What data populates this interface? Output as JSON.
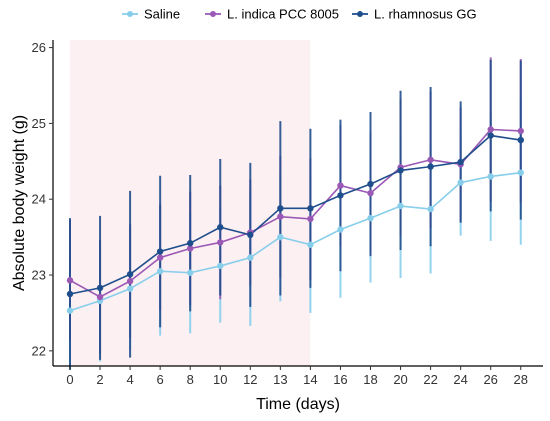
{
  "chart_data": {
    "type": "line",
    "title": "",
    "xlabel": "Time (days)",
    "ylabel": "Absolute body weight (g)",
    "x": [
      0,
      2,
      4,
      6,
      8,
      10,
      12,
      13,
      14,
      16,
      18,
      20,
      22,
      24,
      26,
      28
    ],
    "x_tick_labels": [
      "0",
      "2",
      "4",
      "6",
      "8",
      "10",
      "12",
      "13",
      "14",
      "16",
      "18",
      "20",
      "22",
      "24",
      "26",
      "28"
    ],
    "ylim": [
      21.8,
      26.1
    ],
    "y_ticks": [
      22,
      23,
      24,
      25,
      26
    ],
    "shaded_region": {
      "from": 0,
      "to": 14,
      "color": "#fdf0f2"
    },
    "legend_position": "top",
    "series": [
      {
        "name": "Saline",
        "color": "#87ceeb",
        "values": [
          22.53,
          22.66,
          22.82,
          23.05,
          23.03,
          23.12,
          23.23,
          23.5,
          23.4,
          23.6,
          23.75,
          23.91,
          23.87,
          24.22,
          24.3,
          24.35
        ],
        "errors": [
          0.75,
          0.8,
          0.8,
          0.85,
          0.8,
          0.75,
          0.9,
          0.85,
          0.9,
          0.9,
          0.85,
          0.95,
          0.85,
          0.7,
          0.85,
          0.95
        ]
      },
      {
        "name": "L. indica PCC 8005",
        "color": "#9b59b6",
        "values": [
          22.93,
          22.71,
          22.92,
          23.23,
          23.35,
          23.43,
          23.56,
          23.77,
          23.74,
          24.18,
          24.08,
          24.42,
          24.52,
          24.46,
          24.92,
          24.9
        ],
        "errors": [
          0.8,
          0.75,
          0.75,
          0.7,
          0.75,
          0.75,
          0.7,
          0.8,
          0.8,
          0.8,
          0.8,
          0.9,
          0.9,
          0.75,
          0.95,
          0.95
        ]
      },
      {
        "name": "L. rhamnosus GG",
        "color": "#1f4e8c",
        "values": [
          22.75,
          22.83,
          23.01,
          23.31,
          23.42,
          23.63,
          23.53,
          23.88,
          23.88,
          24.05,
          24.2,
          24.38,
          24.43,
          24.49,
          24.84,
          24.78
        ],
        "errors": [
          1.0,
          0.95,
          1.1,
          1.0,
          0.9,
          0.9,
          0.95,
          1.15,
          1.05,
          1.0,
          0.95,
          1.05,
          1.05,
          0.8,
          1.0,
          1.05
        ]
      }
    ]
  }
}
